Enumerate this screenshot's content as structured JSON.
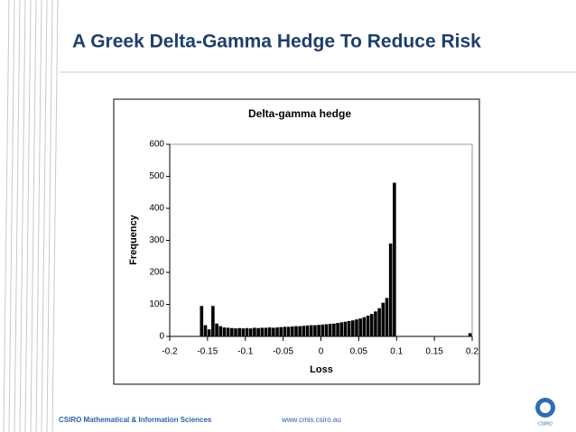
{
  "slide_title": "A Greek Delta-Gamma Hedge To Reduce Risk",
  "footer_left": "CSIRO Mathematical & Information Sciences",
  "footer_center": "www.cmis.csiro.au",
  "logo_text": "CSIRO",
  "chart_data": {
    "type": "histogram",
    "title": "Delta-gamma hedge",
    "x_label": "Loss",
    "y_label": "Frequency",
    "color": "#000000",
    "bins": [
      -0.16,
      -0.155,
      -0.15,
      -0.145,
      -0.14,
      -0.135,
      -0.13,
      -0.125,
      -0.12,
      -0.115,
      -0.11,
      -0.105,
      -0.1,
      -0.095,
      -0.09,
      -0.085,
      -0.08,
      -0.075,
      -0.07,
      -0.065,
      -0.06,
      -0.055,
      -0.05,
      -0.045,
      -0.04,
      -0.035,
      -0.03,
      -0.025,
      -0.02,
      -0.015,
      -0.01,
      -0.005,
      0,
      0.005,
      0.01,
      0.015,
      0.02,
      0.025,
      0.03,
      0.035,
      0.04,
      0.045,
      0.05,
      0.055,
      0.06,
      0.065,
      0.07,
      0.075,
      0.08,
      0.085,
      0.09,
      0.095,
      0.1,
      0.105,
      0.11,
      0.115,
      0.12,
      0.125,
      0.13,
      0.135,
      0.14,
      0.145,
      0.15,
      0.155,
      0.16,
      0.165,
      0.17,
      0.175,
      0.18,
      0.185,
      0.19,
      0.195,
      0.2
    ],
    "values": [
      95,
      35,
      22,
      95,
      40,
      32,
      28,
      27,
      26,
      25,
      26,
      25,
      26,
      25,
      27,
      26,
      27,
      27,
      28,
      27,
      28,
      29,
      30,
      30,
      31,
      32,
      32,
      33,
      34,
      35,
      35,
      36,
      37,
      38,
      39,
      40,
      42,
      44,
      46,
      48,
      50,
      53,
      56,
      60,
      65,
      70,
      78,
      88,
      105,
      120,
      290,
      480,
      0,
      0,
      0,
      0,
      0,
      0,
      0,
      0,
      0,
      0,
      0,
      0,
      0,
      0,
      0,
      0,
      0,
      0,
      0,
      10
    ],
    "xlim": [
      -0.2,
      0.2
    ],
    "xticks": [
      -0.2,
      -0.15,
      -0.1,
      -0.05,
      0,
      0.05,
      0.1,
      0.15,
      0.2
    ],
    "ylim": [
      0,
      600
    ],
    "yticks": [
      0,
      100,
      200,
      300,
      400,
      500,
      600
    ]
  }
}
